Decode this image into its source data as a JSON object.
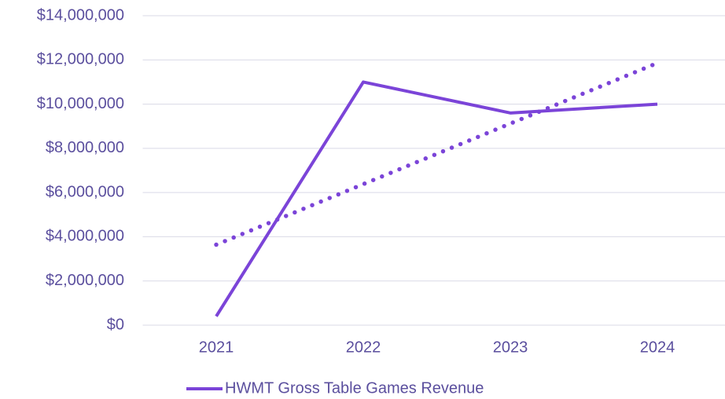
{
  "chart_data": {
    "type": "line",
    "categories": [
      "2021",
      "2022",
      "2023",
      "2024"
    ],
    "series": [
      {
        "name": "HWMT Gross Table Games Revenue",
        "color": "#7b44d8",
        "values": [
          400000,
          11000000,
          9600000,
          10000000
        ]
      },
      {
        "color": "#7b44d8",
        "style": "dotted",
        "values": [
          3640000,
          6380000,
          9120000,
          11860000
        ]
      }
    ],
    "ylim": [
      0,
      14000000
    ],
    "yticks": [
      {
        "value": 0,
        "label": "$0"
      },
      {
        "value": 2000000,
        "label": "$2,000,000"
      },
      {
        "value": 4000000,
        "label": "$4,000,000"
      },
      {
        "value": 6000000,
        "label": "$6,000,000"
      },
      {
        "value": 8000000,
        "label": "$8,000,000"
      },
      {
        "value": 10000000,
        "label": "$10,000,000"
      },
      {
        "value": 12000000,
        "label": "$12,000,000"
      },
      {
        "value": 14000000,
        "label": "$14,000,000"
      }
    ],
    "grid": true,
    "legend": "bottom"
  }
}
